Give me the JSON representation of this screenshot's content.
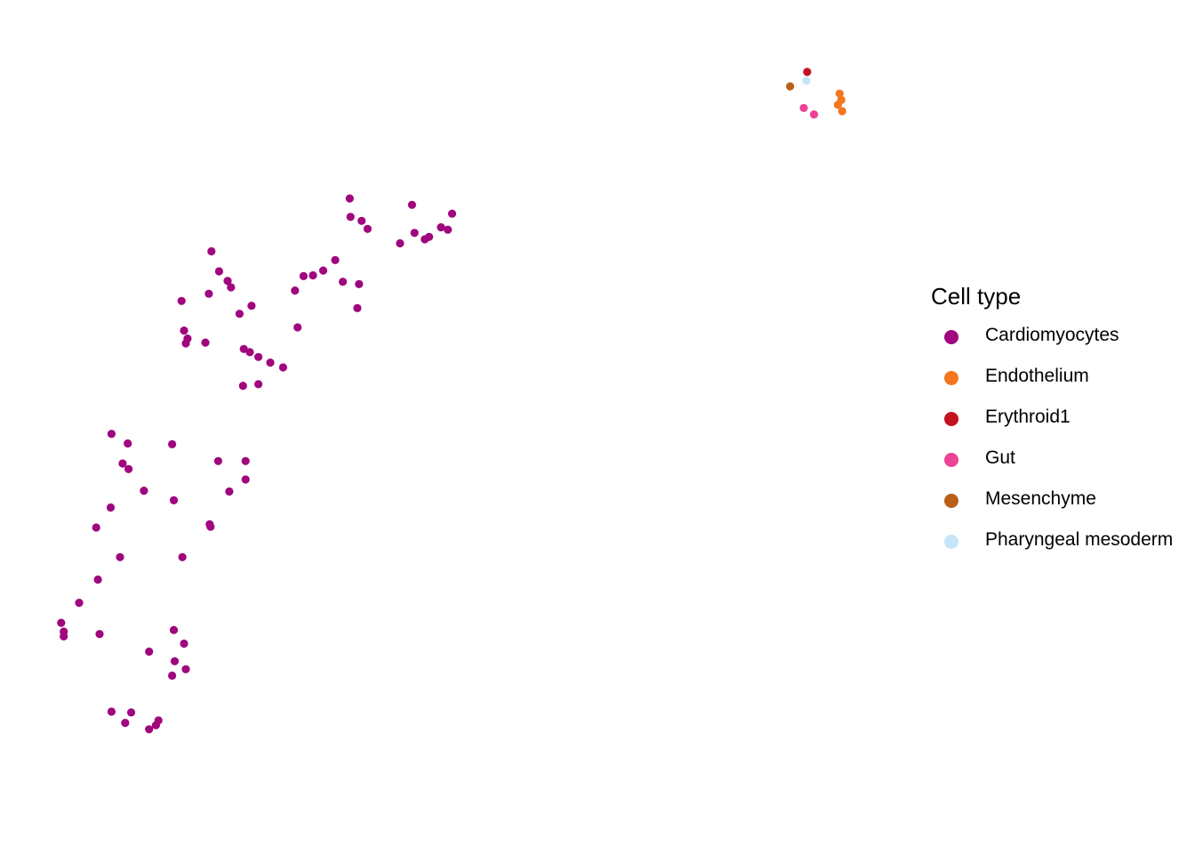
{
  "chart_data": {
    "type": "scatter",
    "title": "",
    "xlabel": "",
    "ylabel": "",
    "grid": false,
    "axes_visible": false,
    "xlim": [
      0,
      100
    ],
    "ylim": [
      0,
      100
    ],
    "legend": {
      "title": "Cell type",
      "placement": "right",
      "entries": [
        {
          "name": "Cardiomyocytes",
          "color": "#A0067E"
        },
        {
          "name": "Endothelium",
          "color": "#F4761D"
        },
        {
          "name": "Erythroid1",
          "color": "#C4121E"
        },
        {
          "name": "Gut",
          "color": "#EE4296"
        },
        {
          "name": "Mesenchyme",
          "color": "#B96018"
        },
        {
          "name": "Pharyngeal mesoderm",
          "color": "#C6E5F6"
        }
      ]
    },
    "series": [
      {
        "name": "Cardiomyocytes",
        "color": "#A0067E",
        "points": [
          [
            44.1,
            78.3
          ],
          [
            44.4,
            74.8
          ],
          [
            46.1,
            74.3
          ],
          [
            47.5,
            75.5
          ],
          [
            48.3,
            75.2
          ],
          [
            48.8,
            77.2
          ],
          [
            45.6,
            74.0
          ],
          [
            42.7,
            73.5
          ],
          [
            36.8,
            79.1
          ],
          [
            36.9,
            76.8
          ],
          [
            38.2,
            76.3
          ],
          [
            38.9,
            75.3
          ],
          [
            36.0,
            68.7
          ],
          [
            37.9,
            68.4
          ],
          [
            37.7,
            65.4
          ],
          [
            35.1,
            71.4
          ],
          [
            33.7,
            70.1
          ],
          [
            32.5,
            69.5
          ],
          [
            31.4,
            69.4
          ],
          [
            30.4,
            67.6
          ],
          [
            20.6,
            72.5
          ],
          [
            30.7,
            63.0
          ],
          [
            29.0,
            58.0
          ],
          [
            25.3,
            65.7
          ],
          [
            26.1,
            59.3
          ],
          [
            25.1,
            59.9
          ],
          [
            20.3,
            67.2
          ],
          [
            21.5,
            70.0
          ],
          [
            22.5,
            68.8
          ],
          [
            22.9,
            68.0
          ],
          [
            17.1,
            66.3
          ],
          [
            17.4,
            62.6
          ],
          [
            17.8,
            61.6
          ],
          [
            23.9,
            64.7
          ],
          [
            27.5,
            58.6
          ],
          [
            26.1,
            55.9
          ],
          [
            24.3,
            55.7
          ],
          [
            19.9,
            61.1
          ],
          [
            24.4,
            60.3
          ],
          [
            17.6,
            61.0
          ],
          [
            8.9,
            49.7
          ],
          [
            10.8,
            48.5
          ],
          [
            10.2,
            46.0
          ],
          [
            10.9,
            45.3
          ],
          [
            12.7,
            42.6
          ],
          [
            16.0,
            48.4
          ],
          [
            8.8,
            40.5
          ],
          [
            21.4,
            46.3
          ],
          [
            24.6,
            46.3
          ],
          [
            24.6,
            44.0
          ],
          [
            22.7,
            42.5
          ],
          [
            16.2,
            41.4
          ],
          [
            20.4,
            38.4
          ],
          [
            20.5,
            38.1
          ],
          [
            7.1,
            38.0
          ],
          [
            9.9,
            34.3
          ],
          [
            17.2,
            34.3
          ],
          [
            7.3,
            31.5
          ],
          [
            16.2,
            25.2
          ],
          [
            5.1,
            28.6
          ],
          [
            3.0,
            26.1
          ],
          [
            3.3,
            25.0
          ],
          [
            3.3,
            24.4
          ],
          [
            7.5,
            24.7
          ],
          [
            17.4,
            23.5
          ],
          [
            13.3,
            22.5
          ],
          [
            16.3,
            21.3
          ],
          [
            17.6,
            20.3
          ],
          [
            16.0,
            19.5
          ],
          [
            8.9,
            15.0
          ],
          [
            11.2,
            14.9
          ],
          [
            10.5,
            13.6
          ],
          [
            14.4,
            13.9
          ],
          [
            14.1,
            13.3
          ],
          [
            13.3,
            12.8
          ]
        ]
      },
      {
        "name": "Endothelium",
        "color": "#F4761D",
        "points": [
          [
            94.2,
            92.2
          ],
          [
            94.4,
            91.4
          ],
          [
            94.0,
            90.8
          ],
          [
            94.5,
            90.0
          ]
        ]
      },
      {
        "name": "Erythroid1",
        "color": "#C4121E",
        "points": [
          [
            90.4,
            94.9
          ]
        ]
      },
      {
        "name": "Gut",
        "color": "#EE4296",
        "points": [
          [
            90.0,
            90.4
          ],
          [
            91.2,
            89.6
          ]
        ]
      },
      {
        "name": "Mesenchyme",
        "color": "#B96018",
        "points": [
          [
            88.4,
            93.1
          ]
        ]
      },
      {
        "name": "Pharyngeal mesoderm",
        "color": "#C6E5F6",
        "points": [
          [
            90.3,
            93.8
          ]
        ]
      }
    ]
  }
}
